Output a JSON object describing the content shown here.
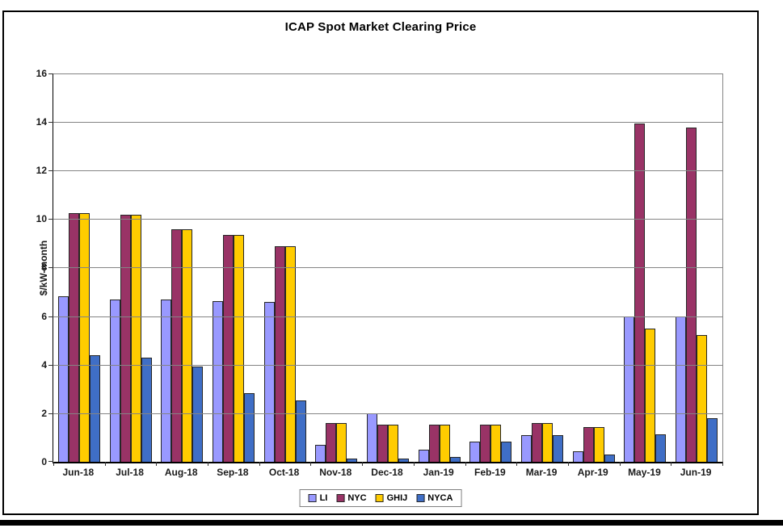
{
  "chart": {
    "title": "ICAP Spot Market Clearing Price",
    "ylabel": "$/kW-month"
  },
  "chart_data": {
    "type": "bar",
    "title": "ICAP Spot Market Clearing Price",
    "xlabel": "",
    "ylabel": "$/kW-month",
    "ylim": [
      0,
      16
    ],
    "ytick_step": 2,
    "grid": true,
    "legend_position": "bottom-center",
    "categories": [
      "Jun-18",
      "Jul-18",
      "Aug-18",
      "Sep-18",
      "Oct-18",
      "Nov-18",
      "Dec-18",
      "Jan-19",
      "Feb-19",
      "Mar-19",
      "Apr-19",
      "May-19",
      "Jun-19"
    ],
    "series": [
      {
        "name": "LI",
        "color": "#9999FF",
        "values": [
          6.8,
          6.65,
          6.65,
          6.6,
          6.55,
          0.65,
          1.95,
          0.45,
          0.8,
          1.05,
          0.4,
          5.95,
          5.95
        ]
      },
      {
        "name": "NYC",
        "color": "#993366",
        "values": [
          10.2,
          10.15,
          9.55,
          9.3,
          8.85,
          1.55,
          1.5,
          1.5,
          1.5,
          1.55,
          1.4,
          13.9,
          13.75
        ]
      },
      {
        "name": "GHIJ",
        "color": "#FFCC00",
        "values": [
          10.2,
          10.15,
          9.55,
          9.3,
          8.85,
          1.55,
          1.5,
          1.5,
          1.5,
          1.55,
          1.4,
          5.45,
          5.2
        ]
      },
      {
        "name": "NYCA",
        "color": "#3F6EC6",
        "values": [
          4.35,
          4.25,
          3.9,
          2.8,
          2.5,
          0.1,
          0.1,
          0.15,
          0.8,
          1.05,
          0.25,
          1.1,
          1.75
        ]
      }
    ]
  }
}
